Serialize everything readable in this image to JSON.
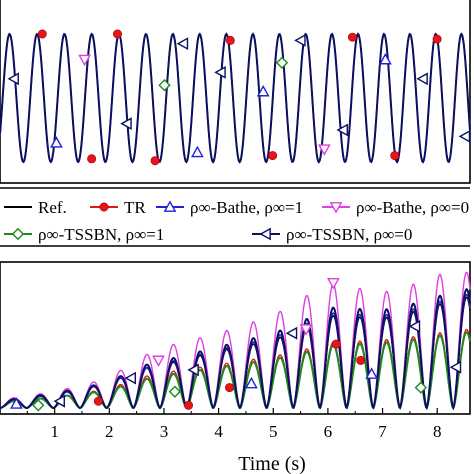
{
  "chart_data": [
    {
      "type": "line",
      "panel": "top",
      "title": "",
      "xlabel": "",
      "ylabel": "",
      "x_range_s": [
        0,
        8.6
      ],
      "oscillation_peaks": 17,
      "amplitude_normalized": 1.0,
      "grid": false
    },
    {
      "type": "line",
      "panel": "bottom",
      "title": "",
      "xlabel": "Time (s)",
      "ylabel": "",
      "xlim": [
        0,
        8.6
      ],
      "xticks": [
        "1",
        "2",
        "3",
        "4",
        "5",
        "6",
        "7",
        "8"
      ],
      "grid": false,
      "envelope_time_s": [
        0,
        1,
        2,
        2.5,
        3,
        4,
        5,
        5.5,
        6,
        7,
        7.5,
        8,
        8.6
      ],
      "envelope_level_normalized": {
        "ref": [
          0.05,
          0.1,
          0.18,
          0.28,
          0.32,
          0.42,
          0.5,
          0.58,
          0.68,
          0.66,
          0.7,
          0.76,
          0.82
        ],
        "tr": [
          0.04,
          0.08,
          0.14,
          0.22,
          0.26,
          0.32,
          0.38,
          0.42,
          0.48,
          0.5,
          0.52,
          0.55,
          0.58
        ],
        "bathe_1": [
          0.05,
          0.1,
          0.18,
          0.28,
          0.33,
          0.43,
          0.52,
          0.6,
          0.7,
          0.68,
          0.72,
          0.78,
          0.84
        ],
        "bathe_0": [
          0.06,
          0.12,
          0.22,
          0.36,
          0.45,
          0.55,
          0.68,
          0.8,
          0.92,
          0.85,
          0.9,
          0.98,
          1.0
        ],
        "tssbn_1": [
          0.04,
          0.08,
          0.13,
          0.2,
          0.24,
          0.3,
          0.36,
          0.4,
          0.46,
          0.48,
          0.5,
          0.53,
          0.56
        ],
        "tssbn_0": [
          0.05,
          0.11,
          0.19,
          0.3,
          0.35,
          0.45,
          0.55,
          0.63,
          0.74,
          0.72,
          0.76,
          0.82,
          0.88
        ]
      }
    }
  ],
  "legend": {
    "entries": [
      {
        "key": "ref",
        "label": "Ref.",
        "color": "#000000",
        "marker": "none"
      },
      {
        "key": "tr",
        "label": "TR",
        "color": "#e3161b",
        "marker": "circle"
      },
      {
        "key": "bathe_1",
        "label": "ρ∞-Bathe, ρ∞=1",
        "color": "#1f22d6",
        "marker": "triangle-up"
      },
      {
        "key": "bathe_0",
        "label": "ρ∞-Bathe, ρ∞=0",
        "color": "#e03ee0",
        "marker": "triangle-down"
      },
      {
        "key": "tssbn_1",
        "label": "ρ∞-TSSBN, ρ∞=1",
        "color": "#1e8a1e",
        "marker": "diamond"
      },
      {
        "key": "tssbn_0",
        "label": "ρ∞-TSSBN, ρ∞=0",
        "color": "#0b1060",
        "marker": "triangle-left"
      }
    ]
  }
}
